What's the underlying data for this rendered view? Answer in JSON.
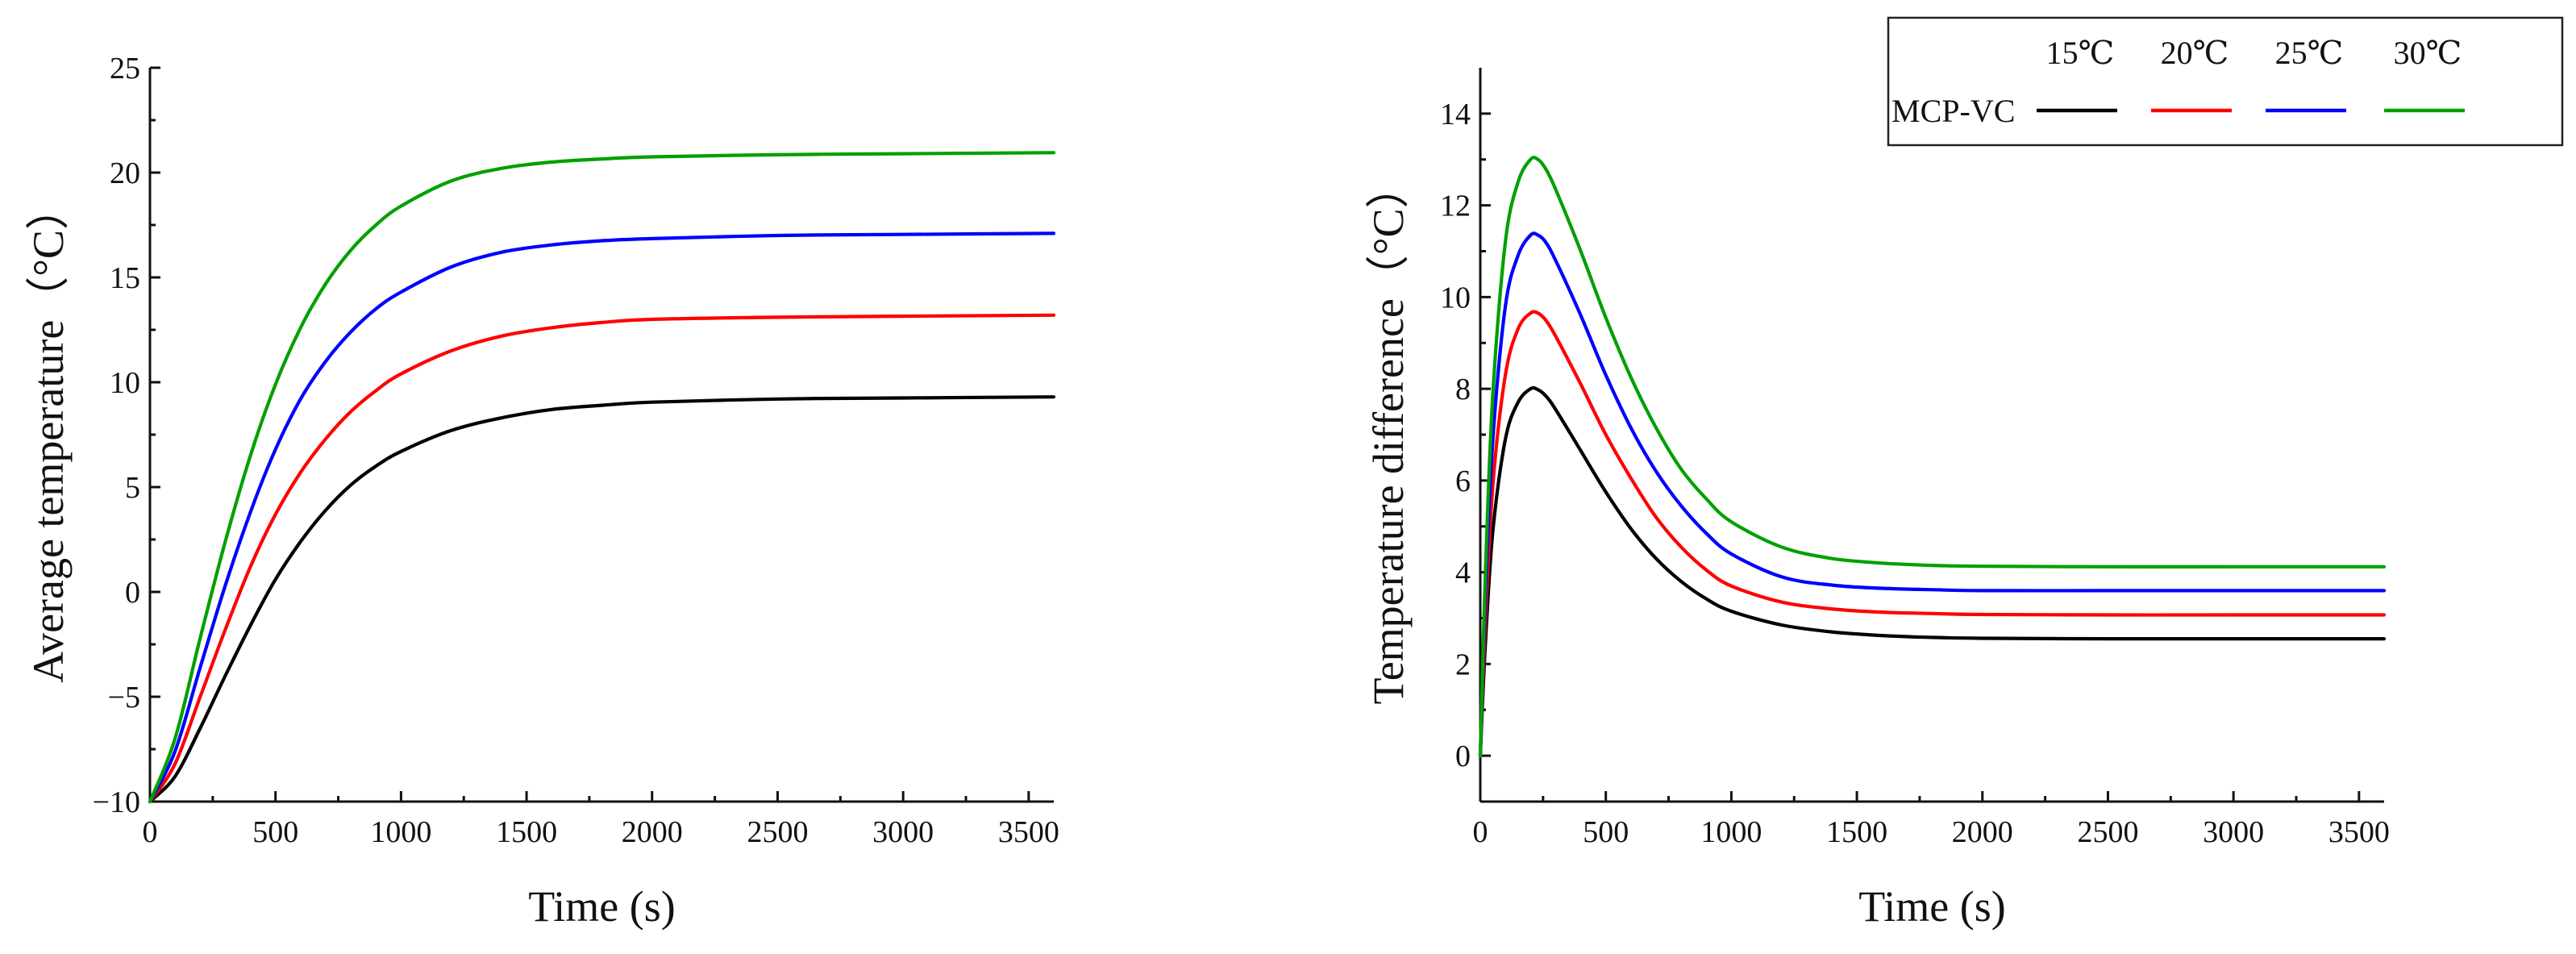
{
  "chart_data": [
    {
      "type": "line",
      "title": "",
      "xlabel": "Time (s)",
      "ylabel": "Average temperature（°C）",
      "xlim": [
        0,
        3600
      ],
      "ylim": [
        -10,
        25
      ],
      "xticks": [
        0,
        500,
        1000,
        1500,
        2000,
        2500,
        3000,
        3500
      ],
      "yticks": [
        -10,
        -5,
        0,
        5,
        10,
        15,
        20,
        25
      ],
      "ytick_labels": [
        "−10",
        "−5",
        "0",
        "5",
        "10",
        "15",
        "20",
        "25"
      ],
      "grid": false,
      "series": [
        {
          "name": "15℃",
          "color": "#000000",
          "x": [
            0,
            100,
            200,
            300,
            400,
            500,
            600,
            700,
            800,
            900,
            1000,
            1200,
            1400,
            1600,
            1800,
            2000,
            2500,
            3000,
            3600
          ],
          "y": [
            -10,
            -8.8,
            -6.5,
            -4.0,
            -1.6,
            0.6,
            2.4,
            3.9,
            5.1,
            6.0,
            6.7,
            7.7,
            8.3,
            8.7,
            8.9,
            9.05,
            9.2,
            9.25,
            9.3
          ]
        },
        {
          "name": "20℃",
          "color": "#ff0000",
          "x": [
            0,
            100,
            200,
            300,
            400,
            500,
            600,
            700,
            800,
            900,
            1000,
            1200,
            1400,
            1600,
            1800,
            2000,
            2500,
            3000,
            3600
          ],
          "y": [
            -10,
            -8.2,
            -5.0,
            -1.8,
            1.2,
            3.7,
            5.7,
            7.3,
            8.6,
            9.6,
            10.4,
            11.5,
            12.2,
            12.6,
            12.85,
            13.0,
            13.1,
            13.15,
            13.2
          ]
        },
        {
          "name": "25℃",
          "color": "#0000ff",
          "x": [
            0,
            100,
            200,
            300,
            400,
            500,
            600,
            700,
            800,
            900,
            1000,
            1200,
            1400,
            1600,
            1800,
            2000,
            2500,
            3000,
            3600
          ],
          "y": [
            -10,
            -7.6,
            -3.6,
            0.3,
            3.8,
            6.8,
            9.2,
            11.0,
            12.4,
            13.5,
            14.3,
            15.5,
            16.2,
            16.55,
            16.75,
            16.85,
            17.0,
            17.05,
            17.1
          ]
        },
        {
          "name": "30℃",
          "color": "#00a000",
          "x": [
            0,
            100,
            200,
            300,
            400,
            500,
            600,
            700,
            800,
            900,
            1000,
            1200,
            1400,
            1600,
            1800,
            2000,
            2500,
            3000,
            3600
          ],
          "y": [
            -10,
            -7.0,
            -2.2,
            2.4,
            6.5,
            9.9,
            12.6,
            14.7,
            16.3,
            17.5,
            18.4,
            19.6,
            20.2,
            20.5,
            20.65,
            20.75,
            20.85,
            20.9,
            20.95
          ]
        }
      ]
    },
    {
      "type": "line",
      "title": "",
      "xlabel": "Time (s)",
      "ylabel": "Temperature difference（°C）",
      "xlim": [
        0,
        3600
      ],
      "ylim": [
        -1,
        15
      ],
      "xticks": [
        0,
        500,
        1000,
        1500,
        2000,
        2500,
        3000,
        3500
      ],
      "yticks": [
        0,
        2,
        4,
        6,
        8,
        10,
        12,
        14
      ],
      "grid": false,
      "legend": {
        "title": "MCP-VC",
        "position": "top-right"
      },
      "series": [
        {
          "name": "15℃",
          "color": "#000000",
          "x": [
            0,
            20,
            50,
            100,
            150,
            200,
            230,
            260,
            300,
            400,
            500,
            600,
            700,
            800,
            900,
            1000,
            1200,
            1400,
            1600,
            1800,
            2000,
            2500,
            3000,
            3600
          ],
          "y": [
            0,
            2.4,
            4.9,
            6.9,
            7.7,
            8.0,
            7.98,
            7.85,
            7.55,
            6.65,
            5.75,
            4.95,
            4.3,
            3.8,
            3.42,
            3.15,
            2.85,
            2.7,
            2.62,
            2.58,
            2.56,
            2.55,
            2.55,
            2.55
          ]
        },
        {
          "name": "20℃",
          "color": "#ff0000",
          "x": [
            0,
            20,
            50,
            100,
            150,
            200,
            230,
            260,
            300,
            400,
            500,
            600,
            700,
            800,
            900,
            1000,
            1200,
            1400,
            1600,
            1800,
            2000,
            2500,
            3000,
            3600
          ],
          "y": [
            0,
            2.9,
            5.9,
            8.3,
            9.3,
            9.65,
            9.65,
            9.5,
            9.15,
            8.1,
            7.0,
            6.05,
            5.2,
            4.55,
            4.05,
            3.7,
            3.35,
            3.2,
            3.13,
            3.1,
            3.08,
            3.07,
            3.07,
            3.07
          ]
        },
        {
          "name": "25℃",
          "color": "#0000ff",
          "x": [
            0,
            20,
            50,
            100,
            150,
            200,
            230,
            260,
            300,
            400,
            500,
            600,
            700,
            800,
            900,
            1000,
            1200,
            1400,
            1600,
            1800,
            2000,
            2500,
            3000,
            3600
          ],
          "y": [
            0,
            3.4,
            6.9,
            9.8,
            10.9,
            11.35,
            11.35,
            11.2,
            10.8,
            9.6,
            8.3,
            7.15,
            6.2,
            5.45,
            4.85,
            4.4,
            3.9,
            3.72,
            3.65,
            3.62,
            3.6,
            3.6,
            3.6,
            3.6
          ]
        },
        {
          "name": "30℃",
          "color": "#00a000",
          "x": [
            0,
            20,
            50,
            100,
            150,
            200,
            230,
            260,
            300,
            400,
            500,
            600,
            700,
            800,
            900,
            1000,
            1200,
            1400,
            1600,
            1800,
            2000,
            2500,
            3000,
            3600
          ],
          "y": [
            0,
            3.9,
            7.9,
            11.2,
            12.5,
            13.0,
            13.0,
            12.8,
            12.35,
            11.0,
            9.55,
            8.25,
            7.15,
            6.25,
            5.6,
            5.1,
            4.55,
            4.3,
            4.2,
            4.15,
            4.13,
            4.12,
            4.12,
            4.12
          ]
        }
      ]
    }
  ]
}
